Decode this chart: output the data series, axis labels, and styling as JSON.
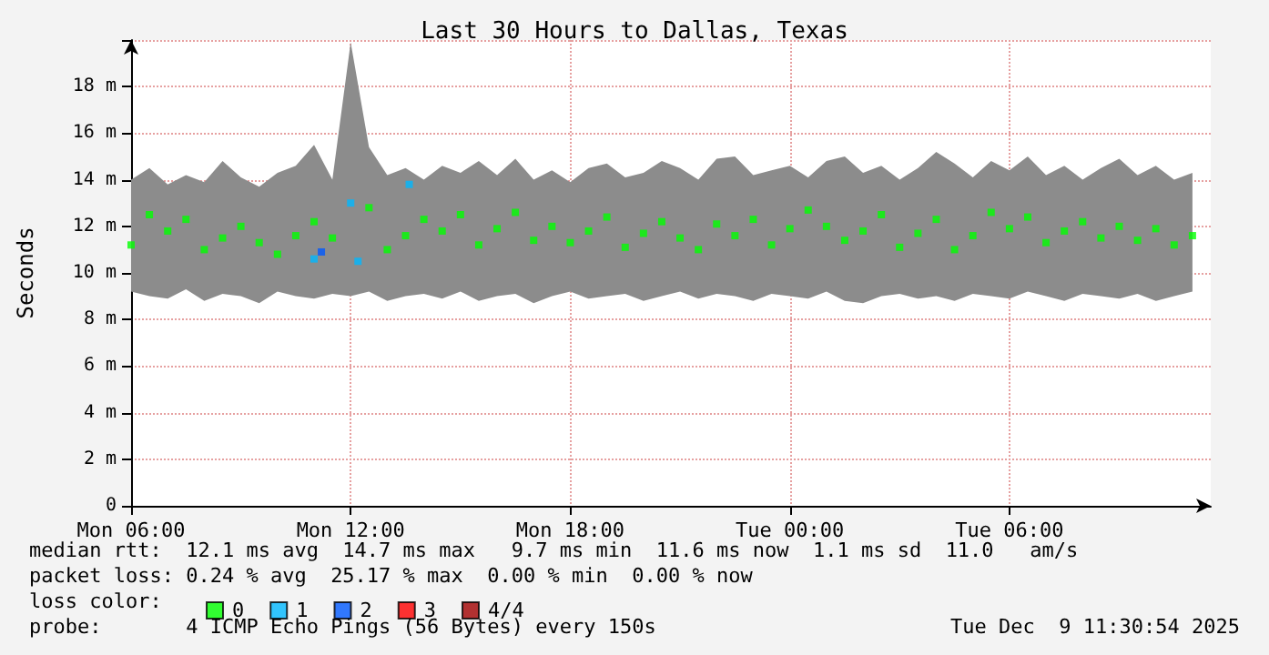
{
  "chart_data": {
    "type": "scatter",
    "title": "Last 30 Hours to Dallas, Texas",
    "ylabel": "Seconds",
    "legend_title": "loss color:",
    "x": [
      "2025-12-08T06:00",
      "2025-12-08T06:30",
      "2025-12-08T07:00",
      "2025-12-08T07:30",
      "2025-12-08T08:00",
      "2025-12-08T08:30",
      "2025-12-08T09:00",
      "2025-12-08T09:30",
      "2025-12-08T10:00",
      "2025-12-08T10:30",
      "2025-12-08T11:00",
      "2025-12-08T11:30",
      "2025-12-08T12:00",
      "2025-12-08T12:30",
      "2025-12-08T13:00",
      "2025-12-08T13:30",
      "2025-12-08T14:00",
      "2025-12-08T14:30",
      "2025-12-08T15:00",
      "2025-12-08T15:30",
      "2025-12-08T16:00",
      "2025-12-08T16:30",
      "2025-12-08T17:00",
      "2025-12-08T17:30",
      "2025-12-08T18:00",
      "2025-12-08T18:30",
      "2025-12-08T19:00",
      "2025-12-08T19:30",
      "2025-12-08T20:00",
      "2025-12-08T20:30",
      "2025-12-08T21:00",
      "2025-12-08T21:30",
      "2025-12-08T22:00",
      "2025-12-08T22:30",
      "2025-12-08T23:00",
      "2025-12-08T23:30",
      "2025-12-09T00:00",
      "2025-12-09T00:30",
      "2025-12-09T01:00",
      "2025-12-09T01:30",
      "2025-12-09T02:00",
      "2025-12-09T02:30",
      "2025-12-09T03:00",
      "2025-12-09T03:30",
      "2025-12-09T04:00",
      "2025-12-09T04:30",
      "2025-12-09T05:00",
      "2025-12-09T05:30",
      "2025-12-09T06:00",
      "2025-12-09T06:30",
      "2025-12-09T07:00",
      "2025-12-09T07:30",
      "2025-12-09T08:00",
      "2025-12-09T08:30",
      "2025-12-09T09:00",
      "2025-12-09T09:30",
      "2025-12-09T10:00",
      "2025-12-09T10:30",
      "2025-12-09T11:00"
    ],
    "series": [
      {
        "name": "0",
        "color": "#00ff00",
        "values": [
          11.2,
          12.5,
          11.8,
          12.3,
          11.0,
          11.5,
          12.0,
          11.3,
          10.8,
          11.6,
          12.2,
          11.5,
          null,
          12.8,
          11.0,
          11.6,
          12.3,
          11.8,
          12.5,
          11.2,
          11.9,
          12.6,
          11.4,
          12.0,
          11.3,
          11.8,
          12.4,
          11.1,
          11.7,
          12.2,
          11.5,
          11.0,
          12.1,
          11.6,
          12.3,
          11.2,
          11.9,
          12.7,
          12.0,
          11.4,
          11.8,
          12.5,
          11.1,
          11.7,
          12.3,
          11.0,
          11.6,
          12.6,
          11.9,
          12.4,
          11.3,
          11.8,
          12.2,
          11.5,
          12.0,
          11.4,
          11.9,
          11.2,
          11.6
        ],
        "lower": [
          9.2,
          9.0,
          8.9,
          9.3,
          8.8,
          9.1,
          9.0,
          8.7,
          9.2,
          9.0,
          8.9,
          9.1,
          9.0,
          9.2,
          8.8,
          9.0,
          9.1,
          8.9,
          9.2,
          8.8,
          9.0,
          9.1,
          8.7,
          9.0,
          9.2,
          8.9,
          9.0,
          9.1,
          8.8,
          9.0,
          9.2,
          8.9,
          9.1,
          9.0,
          8.8,
          9.1,
          9.0,
          8.9,
          9.2,
          8.8,
          8.7,
          9.0,
          9.1,
          8.9,
          9.0,
          8.8,
          9.1,
          9.0,
          8.9,
          9.2,
          9.0,
          8.8,
          9.1,
          9.0,
          8.9,
          9.1,
          8.8,
          9.0,
          9.2
        ],
        "upper": [
          14.0,
          14.5,
          13.8,
          14.2,
          13.9,
          14.8,
          14.1,
          13.7,
          14.3,
          14.6,
          15.5,
          14.0,
          19.9,
          15.4,
          14.2,
          14.5,
          14.0,
          14.6,
          14.3,
          14.8,
          14.2,
          14.9,
          14.0,
          14.4,
          13.9,
          14.5,
          14.7,
          14.1,
          14.3,
          14.8,
          14.5,
          14.0,
          14.9,
          15.0,
          14.2,
          14.4,
          14.6,
          14.1,
          14.8,
          15.0,
          14.3,
          14.6,
          14.0,
          14.5,
          15.2,
          14.7,
          14.1,
          14.8,
          14.4,
          15.0,
          14.2,
          14.6,
          14.0,
          14.5,
          14.9,
          14.2,
          14.6,
          14.0,
          14.3
        ]
      },
      {
        "name": "1",
        "color": "#00b8ff",
        "x": [
          "2025-12-08T11:00",
          "2025-12-08T12:00",
          "2025-12-08T12:12",
          "2025-12-08T13:36"
        ],
        "values": [
          10.6,
          13.0,
          10.5,
          13.8
        ]
      },
      {
        "name": "2",
        "color": "#0059ff",
        "x": [
          "2025-12-08T11:12"
        ],
        "values": [
          10.9
        ]
      },
      {
        "name": "3",
        "color": "#ff0000",
        "values": [
          null,
          null,
          null,
          null,
          null,
          null,
          null,
          null,
          null,
          null,
          null,
          null,
          null,
          null,
          null,
          null,
          null,
          null,
          null,
          null,
          null,
          null,
          null,
          null,
          null,
          null,
          null,
          null,
          null,
          null,
          null,
          null,
          null,
          null,
          null,
          null,
          null,
          null,
          null,
          null,
          null,
          null,
          null,
          null,
          null,
          null,
          null,
          null,
          null,
          null,
          null,
          null,
          null,
          null,
          null,
          null,
          null,
          null,
          null
        ]
      },
      {
        "name": "4/4",
        "color": "#a10000",
        "values": [
          null,
          null,
          null,
          null,
          null,
          null,
          null,
          null,
          null,
          null,
          null,
          null,
          null,
          null,
          null,
          null,
          null,
          null,
          null,
          null,
          null,
          null,
          null,
          null,
          null,
          null,
          null,
          null,
          null,
          null,
          null,
          null,
          null,
          null,
          null,
          null,
          null,
          null,
          null,
          null,
          null,
          null,
          null,
          null,
          null,
          null,
          null,
          null,
          null,
          null,
          null,
          null,
          null,
          null,
          null,
          null,
          null,
          null,
          null
        ]
      }
    ],
    "marker": "square",
    "xlim": [
      "2025-12-08T06:00",
      "2025-12-09T11:30"
    ],
    "xticks": [
      {
        "value": "2025-12-08T06:00",
        "label": "Mon 06:00"
      },
      {
        "value": "2025-12-08T12:00",
        "label": "Mon 12:00"
      },
      {
        "value": "2025-12-08T18:00",
        "label": "Mon 18:00"
      },
      {
        "value": "2025-12-09T00:00",
        "label": "Tue 00:00"
      },
      {
        "value": "2025-12-09T06:00",
        "label": "Tue 06:00"
      }
    ],
    "ylim": [
      0,
      20
    ],
    "yticks": [
      0,
      {
        "value": 2,
        "label": "2 m"
      },
      {
        "value": 4,
        "label": "4 m"
      },
      {
        "value": 6,
        "label": "6 m"
      },
      {
        "value": 8,
        "label": "8 m"
      },
      {
        "value": 10,
        "label": "10 m"
      },
      {
        "value": 12,
        "label": "12 m"
      },
      {
        "value": 14,
        "label": "14 m"
      },
      {
        "value": 16,
        "label": "16 m"
      },
      {
        "value": 18,
        "label": "18 m"
      }
    ],
    "grid": true,
    "legend": "bottom left",
    "annotations": [
      "median rtt:  12.1 ms avg  14.7 ms max   9.7 ms min  11.6 ms now  1.1 ms sd  11.0   am/s",
      "packet loss: 0.24 % avg  25.17 % max  0.00 % min  0.00 % now",
      "probe:       4 ICMP Echo Pings (56 Bytes) every 150s",
      "Tue Dec  9 11:30:54 2025"
    ]
  }
}
